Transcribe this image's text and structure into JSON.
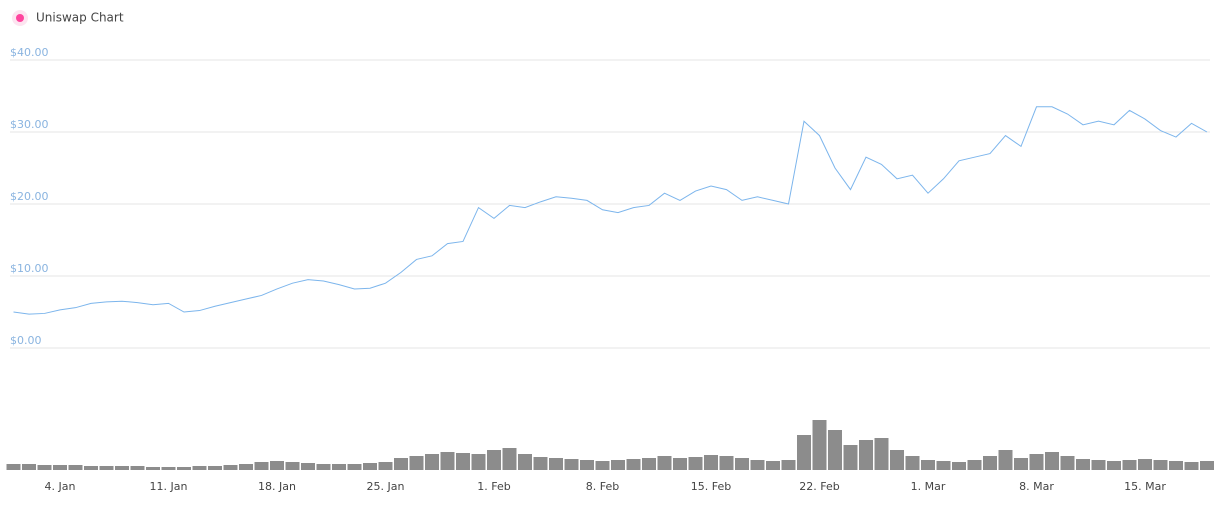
{
  "chart_data": {
    "type": "line",
    "title": "Uniswap Chart",
    "categories": [
      null,
      null,
      null,
      "4. Jan",
      null,
      null,
      null,
      null,
      null,
      null,
      "11. Jan",
      null,
      null,
      null,
      null,
      null,
      null,
      "18. Jan",
      null,
      null,
      null,
      null,
      null,
      null,
      "25. Jan",
      null,
      null,
      null,
      null,
      null,
      null,
      "1. Feb",
      null,
      null,
      null,
      null,
      null,
      null,
      "8. Feb",
      null,
      null,
      null,
      null,
      null,
      null,
      "15. Feb",
      null,
      null,
      null,
      null,
      null,
      null,
      "22. Feb",
      null,
      null,
      null,
      null,
      null,
      null,
      "1. Mar",
      null,
      null,
      null,
      null,
      null,
      null,
      "8. Mar",
      null,
      null,
      null,
      null,
      null,
      null,
      "15. Mar",
      null,
      null,
      null,
      null
    ],
    "series": [
      {
        "type": "line",
        "color": "#7cb5ec",
        "axis": "y",
        "values": [
          5.0,
          4.7,
          4.8,
          5.3,
          5.6,
          6.2,
          6.4,
          6.5,
          6.3,
          6.0,
          6.2,
          5.0,
          5.2,
          5.8,
          6.3,
          6.8,
          7.3,
          8.2,
          9.0,
          9.5,
          9.3,
          8.8,
          8.2,
          8.3,
          9.0,
          10.5,
          12.3,
          12.8,
          14.5,
          14.8,
          19.5,
          18.0,
          19.8,
          19.5,
          20.3,
          21.0,
          20.8,
          20.5,
          19.2,
          18.8,
          19.5,
          19.8,
          21.5,
          20.5,
          21.8,
          22.5,
          22.0,
          20.5,
          21.0,
          20.5,
          20.0,
          31.5,
          29.5,
          25.0,
          22.0,
          26.5,
          25.5,
          23.5,
          24.0,
          21.5,
          23.5,
          26.0,
          26.5,
          27.0,
          29.5,
          28.0,
          33.5,
          33.5,
          32.5,
          31.0,
          31.5,
          31.0,
          33.0,
          31.8,
          30.2,
          29.3,
          31.2,
          30.0
        ]
      },
      {
        "type": "bar",
        "color": "#8c8c8c",
        "axis": "y2",
        "values": [
          6,
          6,
          5,
          5,
          5,
          4,
          4,
          4,
          4,
          3,
          3,
          3,
          4,
          4,
          5,
          6,
          8,
          9,
          8,
          7,
          6,
          6,
          6,
          7,
          8,
          12,
          14,
          16,
          18,
          17,
          16,
          20,
          22,
          16,
          13,
          12,
          11,
          10,
          9,
          10,
          11,
          12,
          14,
          12,
          13,
          15,
          14,
          12,
          10,
          9,
          10,
          35,
          50,
          40,
          25,
          30,
          32,
          20,
          14,
          10,
          9,
          8,
          10,
          14,
          20,
          12,
          16,
          18,
          14,
          11,
          10,
          9,
          10,
          11,
          10,
          9,
          8,
          9
        ]
      }
    ],
    "ylim": [
      0,
      40
    ],
    "yticks": [
      {
        "value": 0,
        "label": "$0.00"
      },
      {
        "value": 10,
        "label": "$10.00"
      },
      {
        "value": 20,
        "label": "$20.00"
      },
      {
        "value": 30,
        "label": "$30.00"
      },
      {
        "value": 40,
        "label": "$40.00"
      }
    ],
    "y2lim": [
      0,
      60
    ],
    "grid": true
  }
}
